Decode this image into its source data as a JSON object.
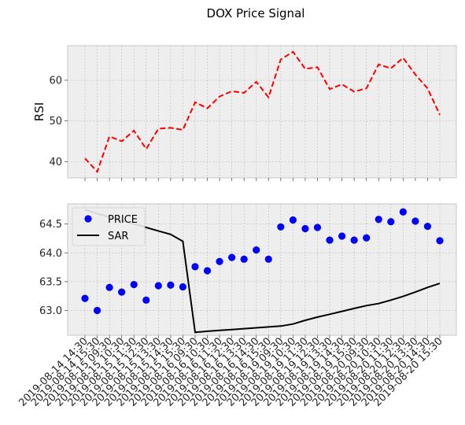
{
  "chart_data": {
    "type": "line",
    "title": "DOX Price Signal",
    "categories": [
      "2019-08-14 14:30",
      "2019-08-14 15:30",
      "2019-08-15 09:30",
      "2019-08-15 10:30",
      "2019-08-15 11:30",
      "2019-08-15 12:30",
      "2019-08-15 13:30",
      "2019-08-15 14:30",
      "2019-08-15 15:30",
      "2019-08-16 09:30",
      "2019-08-16 10:30",
      "2019-08-16 11:30",
      "2019-08-16 12:30",
      "2019-08-16 13:30",
      "2019-08-16 14:30",
      "2019-08-16 15:30",
      "2019-08-19 09:30",
      "2019-08-19 10:30",
      "2019-08-19 11:30",
      "2019-08-19 12:30",
      "2019-08-19 13:30",
      "2019-08-19 14:30",
      "2019-08-19 15:30",
      "2019-08-20 09:30",
      "2019-08-20 10:30",
      "2019-08-20 11:30",
      "2019-08-20 12:30",
      "2019-08-20 13:30",
      "2019-08-20 14:30",
      "2019-08-20 15:30"
    ],
    "panels": [
      {
        "ylabel": "RSI",
        "ylim": [
          36,
          68.5
        ],
        "yticks": [
          40,
          50,
          60
        ],
        "grid": true,
        "series": [
          {
            "style": "dashed",
            "color": "#ff0000",
            "values": [
              40.8,
              37.5,
              46.2,
              45.0,
              47.6,
              43.1,
              48.1,
              48.3,
              47.8,
              54.6,
              53.1,
              56.0,
              57.3,
              56.9,
              59.6,
              55.8,
              65.1,
              67.0,
              62.8,
              63.2,
              57.8,
              59.0,
              57.2,
              58.0,
              63.9,
              62.9,
              65.5,
              61.4,
              58.0,
              51.5
            ]
          }
        ]
      },
      {
        "ylim": [
          62.57,
          64.85
        ],
        "yticks": [
          63.0,
          63.5,
          64.0,
          64.5
        ],
        "grid": true,
        "legend": "upper left",
        "series": [
          {
            "name": "PRICE",
            "style": "markers",
            "color": "#0000ff",
            "values": [
              63.21,
              63.0,
              63.4,
              63.32,
              63.45,
              63.18,
              63.43,
              63.44,
              63.41,
              63.76,
              63.69,
              63.85,
              63.92,
              63.89,
              64.05,
              63.89,
              64.45,
              64.57,
              64.42,
              64.44,
              64.22,
              64.29,
              64.22,
              64.26,
              64.58,
              64.54,
              64.71,
              64.55,
              64.46,
              64.21
            ]
          },
          {
            "name": "SAR",
            "style": "solid",
            "color": "#000000",
            "values": [
              64.75,
              64.68,
              64.62,
              64.56,
              64.5,
              64.44,
              64.38,
              64.32,
              64.2,
              62.62,
              62.64,
              62.655,
              62.67,
              62.685,
              62.7,
              62.715,
              62.73,
              62.765,
              62.83,
              62.885,
              62.935,
              62.985,
              63.035,
              63.085,
              63.12,
              63.18,
              63.245,
              63.32,
              63.4,
              63.47
            ]
          }
        ]
      }
    ]
  },
  "colors": {
    "axes_background": "#eeeeee",
    "grid": "#b2b2b2"
  }
}
